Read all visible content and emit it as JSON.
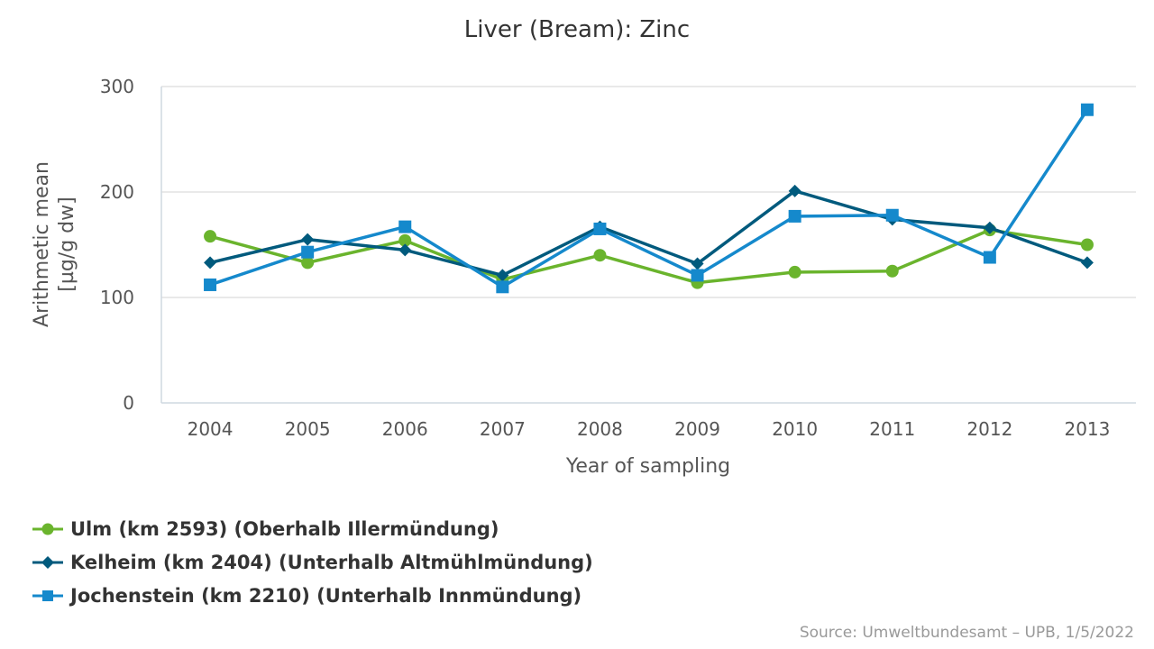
{
  "chart_data": {
    "type": "line",
    "title": "Liver (Bream): Zinc",
    "xlabel": "Year of sampling",
    "ylabel_line1": "Arithmetic mean",
    "ylabel_line2": "[µg/g dw]",
    "ylim": [
      0,
      300
    ],
    "yticks": [
      "0",
      "100",
      "200",
      "300"
    ],
    "categories": [
      "2004",
      "2005",
      "2006",
      "2007",
      "2008",
      "2009",
      "2010",
      "2011",
      "2012",
      "2013"
    ],
    "series": [
      {
        "name": "Ulm (km 2593) (Oberhalb Illermündung)",
        "color": "#6ab42d",
        "marker": "circle",
        "values": [
          158,
          133,
          154,
          117,
          140,
          114,
          124,
          125,
          164,
          150
        ]
      },
      {
        "name": "Kelheim (km 2404) (Unterhalb Altmühlmündung)",
        "color": "#005a7d",
        "marker": "diamond",
        "values": [
          133,
          155,
          145,
          121,
          167,
          132,
          201,
          174,
          166,
          133
        ]
      },
      {
        "name": "Jochenstein (km 2210) (Unterhalb Innmündung)",
        "color": "#1589cc",
        "marker": "square",
        "values": [
          112,
          143,
          167,
          110,
          165,
          121,
          177,
          178,
          138,
          278
        ]
      }
    ],
    "grid": true,
    "legend_position": "bottom-left"
  },
  "source": "Source: Umweltbundesamt – UPB, 1/5/2022"
}
